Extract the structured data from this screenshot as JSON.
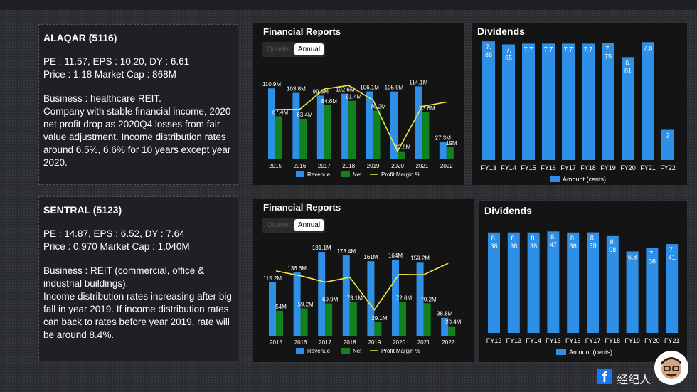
{
  "stocks": [
    {
      "title": "ALAQAR (5116)",
      "metrics_line1": "PE : 11.57,  EPS : 10.20,  DY : 6.61",
      "metrics_line2": "Price : 1.18      Market Cap : 868M",
      "description": "Business : healthcare REIT.\nCompany with stable financial income, 2020 net profit drop as 2020Q4  losses from fair value adjustment. Income distribution rates around 6.5%, 6.6% for 10 years except year 2020.",
      "financial_title": "Financial Reports",
      "toggle": [
        "Quarter",
        "Annual"
      ],
      "dividends_title": "Dividends"
    },
    {
      "title": "SENTRAL (5123)",
      "metrics_line1": "PE : 14.87,  EPS : 6.52,  DY : 7.64",
      "metrics_line2": "Price : 0.970      Market Cap : 1,040M",
      "description": "Business : REIT (commercial, office & industrial buildings).\nIncome distribution rates increasing after big fall in year 2019.  If income distribution rates can back to rates before year 2019, rate will be around 8.4%.",
      "financial_title": "Financial Reports",
      "toggle": [
        "Quarter",
        "Annual"
      ],
      "dividends_title": "Dividends"
    }
  ],
  "chart_data": [
    {
      "type": "bar",
      "title": "Financial Reports",
      "categories": [
        "2015",
        "2016",
        "2017",
        "2018",
        "2019",
        "2020",
        "2021",
        "2022"
      ],
      "series": [
        {
          "name": "Revenue",
          "values": [
            110.9,
            103.8,
            99.6,
            102.6,
            106.1,
            105.9,
            114.1,
            27.3
          ],
          "labels": [
            "110.9M",
            "103.8M",
            "99.6M",
            "102.6M",
            "106.1M",
            "105.9M",
            "114.1M",
            "27.3M"
          ]
        },
        {
          "name": "Net",
          "values": [
            67.4,
            63.4,
            84.6,
            91.4,
            76.2,
            12.6,
            73.6,
            19
          ],
          "labels": [
            "67.4M",
            "63.4M",
            "84.6M",
            "91.4M",
            "76.2M",
            "12.6M",
            "73.6M",
            "19M"
          ]
        },
        {
          "name": "Profit Margin %",
          "values": [
            60.8,
            61.1,
            84.9,
            89.1,
            71.8,
            11.9,
            64.5,
            69.6
          ]
        }
      ],
      "colors": {
        "Revenue": "#2e8fe6",
        "Net": "#12821e",
        "Profit Margin %": "#f0e640"
      }
    },
    {
      "type": "bar",
      "title": "Dividends",
      "categories": [
        "FY13",
        "FY14",
        "FY15",
        "FY16",
        "FY17",
        "FY18",
        "FY19",
        "FY20",
        "FY21",
        "FY22"
      ],
      "series": [
        {
          "name": "Amount (cents)",
          "values": [
            7.85,
            7.65,
            7.7,
            7.7,
            7.7,
            7.7,
            7.75,
            6.81,
            7.8,
            2
          ],
          "label_lines": [
            [
              "7.",
              "85"
            ],
            [
              "7.",
              "65"
            ],
            [
              "7.7"
            ],
            [
              "7.7"
            ],
            [
              "7.7"
            ],
            [
              "7.7"
            ],
            [
              "7.",
              "75"
            ],
            [
              "6.",
              "81"
            ],
            [
              "7.8"
            ],
            [
              "2"
            ]
          ]
        }
      ],
      "colors": {
        "Amount (cents)": "#2e8fe6"
      }
    },
    {
      "type": "bar",
      "title": "Financial Reports",
      "categories": [
        "2015",
        "2016",
        "2017",
        "2018",
        "2019",
        "2020",
        "2021",
        "2022"
      ],
      "series": [
        {
          "name": "Revenue",
          "values": [
            115.2,
            136.6,
            181.1,
            173.4,
            161,
            164,
            159.2,
            38.8
          ],
          "labels": [
            "115.2M",
            "136.6M",
            "181.1M",
            "173.4M",
            "161M",
            "164M",
            "159.2M",
            "38.8M"
          ]
        },
        {
          "name": "Net",
          "values": [
            54,
            59.2,
            69.9,
            73.1,
            29.1,
            72.6,
            70.2,
            20.4
          ],
          "labels": [
            "54M",
            "59.2M",
            "69.9M",
            "73.1M",
            "29.1M",
            "72.6M",
            "70.2M",
            "20.4M"
          ]
        },
        {
          "name": "Profit Margin %",
          "values": [
            46.9,
            43.3,
            38.6,
            42.2,
            18.1,
            44.3,
            44.1,
            52.6
          ]
        }
      ],
      "colors": {
        "Revenue": "#2e8fe6",
        "Net": "#12821e",
        "Profit Margin %": "#f0e640"
      }
    },
    {
      "type": "bar",
      "title": "Dividends",
      "categories": [
        "FY12",
        "FY13",
        "FY14",
        "FY15",
        "FY16",
        "FY17",
        "FY18",
        "FY19",
        "FY20",
        "FY21"
      ],
      "series": [
        {
          "name": "Amount (cents)",
          "values": [
            8.38,
            8.38,
            8.38,
            8.47,
            8.38,
            8.39,
            8.08,
            6.8,
            7.08,
            7.41
          ],
          "label_lines": [
            [
              "8.",
              "38"
            ],
            [
              "8.",
              "38"
            ],
            [
              "8.",
              "38"
            ],
            [
              "8.",
              "47"
            ],
            [
              "8.",
              "38"
            ],
            [
              "8.",
              "39"
            ],
            [
              "8.",
              "08"
            ],
            [
              "6.8"
            ],
            [
              "7.",
              "08"
            ],
            [
              "7.",
              "41"
            ]
          ]
        }
      ],
      "colors": {
        "Amount (cents)": "#2e8fe6"
      }
    }
  ],
  "footer": {
    "fb_glyph": "f",
    "brand": "经纪人"
  }
}
